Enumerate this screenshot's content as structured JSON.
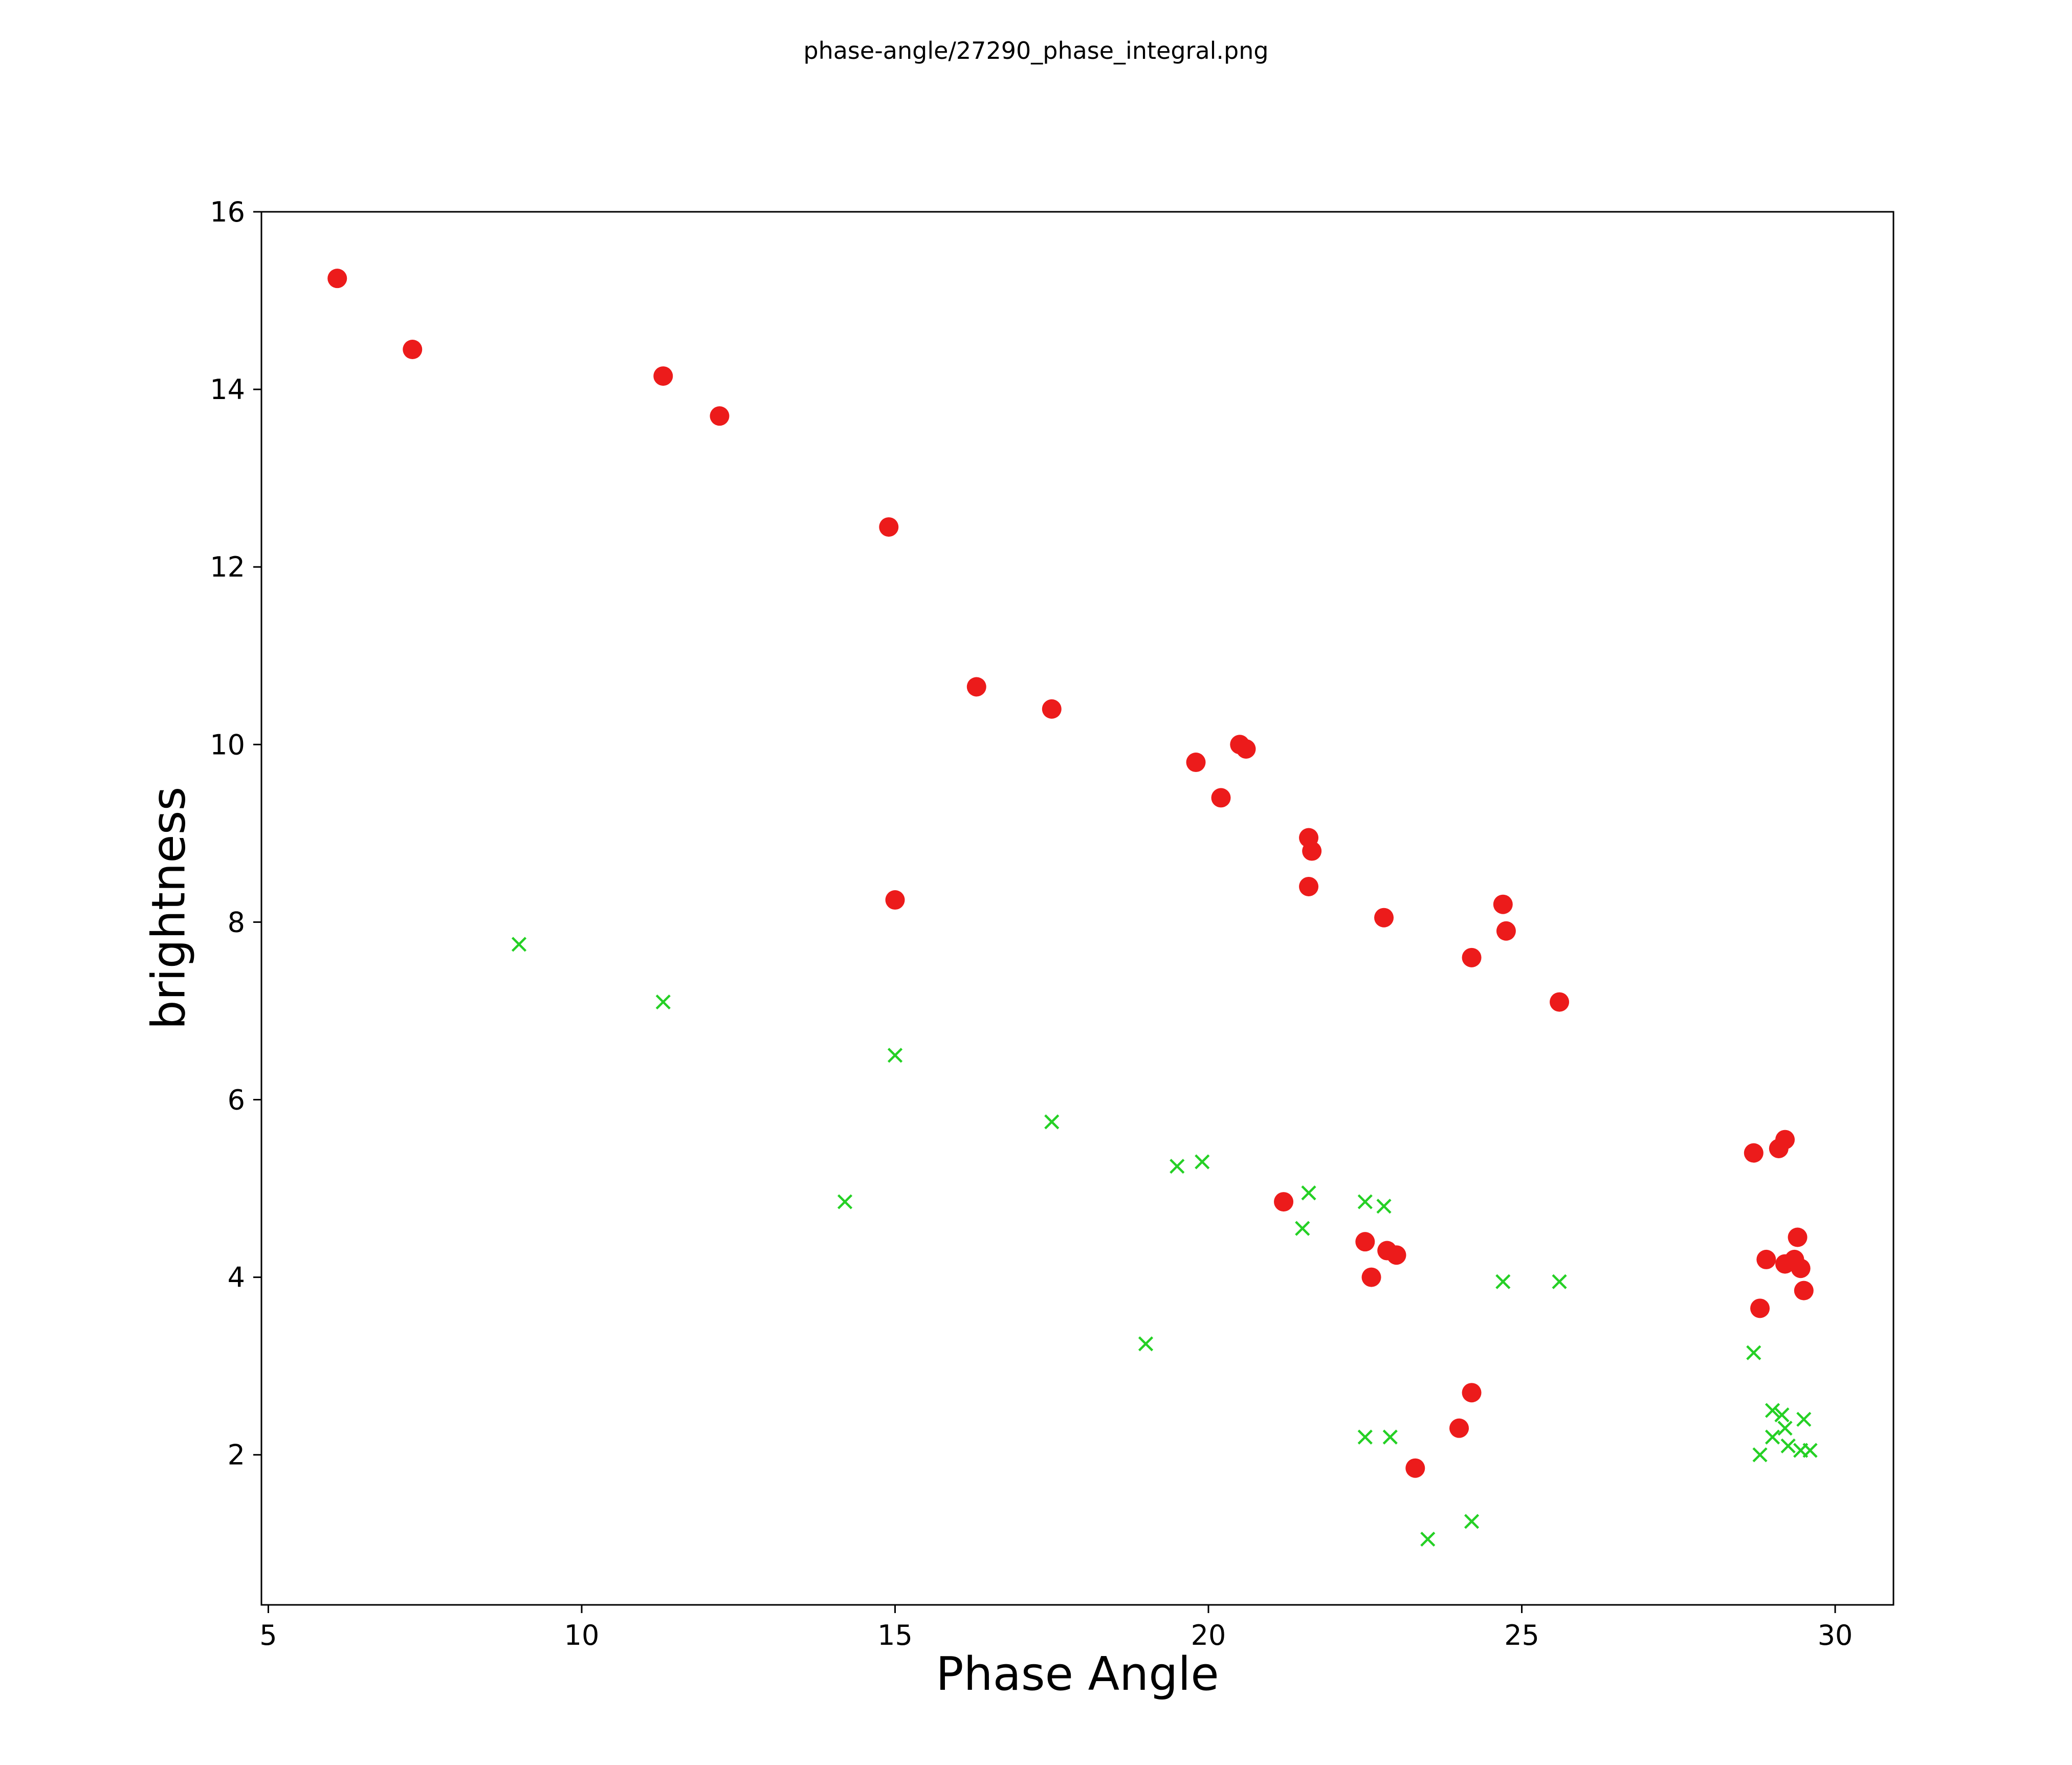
{
  "chart_data": {
    "type": "scatter",
    "title": "phase-angle/27290_phase_integral.png",
    "xlabel": "Phase Angle",
    "ylabel": "brightness",
    "xlim": [
      4.89,
      30.93
    ],
    "ylim": [
      0.31,
      16.0
    ],
    "xticks": [
      5,
      10,
      15,
      20,
      25,
      30
    ],
    "yticks": [
      2,
      4,
      6,
      8,
      10,
      12,
      14,
      16
    ],
    "grid": false,
    "legend": "none",
    "series": [
      {
        "name": "red-circles",
        "marker": "circle",
        "color": "#ec1b1b",
        "points": [
          [
            6.1,
            15.25
          ],
          [
            7.3,
            14.45
          ],
          [
            11.3,
            14.15
          ],
          [
            12.2,
            13.7
          ],
          [
            14.9,
            12.45
          ],
          [
            16.3,
            10.65
          ],
          [
            17.5,
            10.4
          ],
          [
            19.8,
            9.8
          ],
          [
            20.5,
            10.0
          ],
          [
            20.6,
            9.95
          ],
          [
            20.2,
            9.4
          ],
          [
            21.6,
            8.95
          ],
          [
            21.65,
            8.8
          ],
          [
            21.6,
            8.4
          ],
          [
            15.0,
            8.25
          ],
          [
            22.8,
            8.05
          ],
          [
            24.7,
            8.2
          ],
          [
            24.75,
            7.9
          ],
          [
            24.2,
            7.6
          ],
          [
            25.6,
            7.1
          ],
          [
            21.2,
            4.85
          ],
          [
            22.5,
            4.4
          ],
          [
            22.85,
            4.3
          ],
          [
            23.0,
            4.25
          ],
          [
            22.6,
            4.0
          ],
          [
            23.3,
            1.85
          ],
          [
            24.0,
            2.3
          ],
          [
            24.2,
            2.7
          ],
          [
            28.7,
            5.4
          ],
          [
            29.1,
            5.45
          ],
          [
            29.2,
            5.55
          ],
          [
            29.4,
            4.45
          ],
          [
            28.9,
            4.2
          ],
          [
            29.2,
            4.15
          ],
          [
            29.35,
            4.2
          ],
          [
            29.45,
            4.1
          ],
          [
            29.5,
            3.85
          ],
          [
            28.8,
            3.65
          ]
        ]
      },
      {
        "name": "green-x",
        "marker": "x",
        "color": "#25d025",
        "points": [
          [
            9.0,
            7.75
          ],
          [
            11.3,
            7.1
          ],
          [
            15.0,
            6.5
          ],
          [
            17.5,
            5.75
          ],
          [
            19.5,
            5.25
          ],
          [
            19.9,
            5.3
          ],
          [
            14.2,
            4.85
          ],
          [
            21.6,
            4.95
          ],
          [
            21.5,
            4.55
          ],
          [
            22.5,
            4.85
          ],
          [
            22.8,
            4.8
          ],
          [
            24.7,
            3.95
          ],
          [
            25.6,
            3.95
          ],
          [
            19.0,
            3.25
          ],
          [
            22.5,
            2.2
          ],
          [
            22.9,
            2.2
          ],
          [
            23.5,
            1.05
          ],
          [
            24.2,
            1.25
          ],
          [
            28.7,
            3.15
          ],
          [
            29.0,
            2.5
          ],
          [
            29.15,
            2.45
          ],
          [
            29.2,
            2.3
          ],
          [
            29.0,
            2.2
          ],
          [
            28.8,
            2.0
          ],
          [
            29.25,
            2.1
          ],
          [
            29.5,
            2.4
          ],
          [
            29.45,
            2.05
          ],
          [
            29.6,
            2.05
          ]
        ]
      }
    ]
  }
}
